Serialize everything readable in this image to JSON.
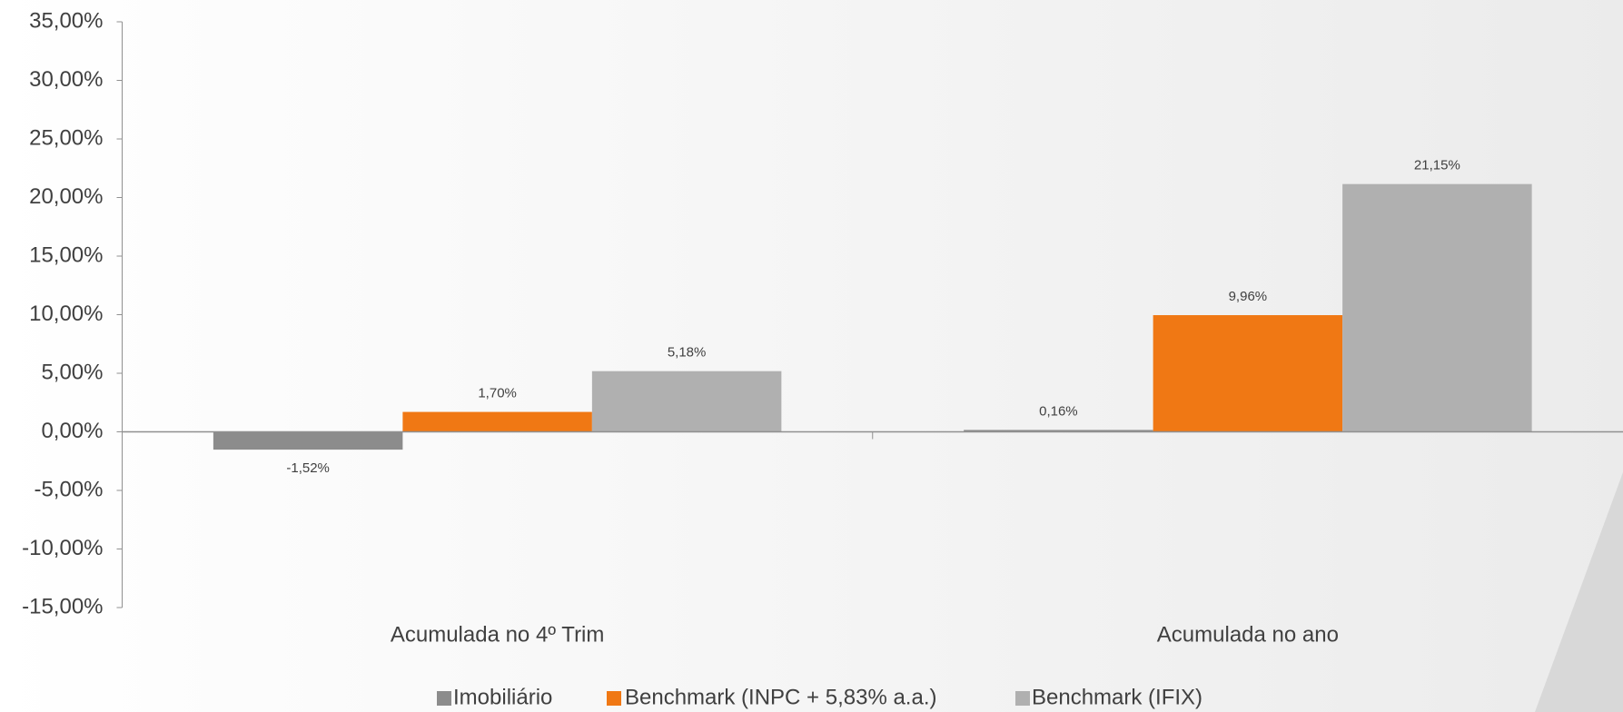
{
  "chart_data": {
    "type": "bar",
    "categories": [
      "Acumulada no 4º Trim",
      "Acumulada no ano"
    ],
    "series": [
      {
        "name": "Imobiliário",
        "color": "#8c8c8c",
        "values": [
          -1.52,
          0.16
        ],
        "value_labels": [
          "-1,52%",
          "0,16%"
        ]
      },
      {
        "name": "Benchmark (INPC + 5,83% a.a.)",
        "color": "#f07814",
        "values": [
          1.7,
          9.96
        ],
        "value_labels": [
          "1,70%",
          "9,96%"
        ]
      },
      {
        "name": "Benchmark (IFIX)",
        "color": "#b0b0b0",
        "values": [
          5.18,
          21.15
        ],
        "value_labels": [
          "5,18%",
          "21,15%"
        ]
      }
    ],
    "ylim": [
      -15,
      35
    ],
    "yticks": [
      {
        "value": -15,
        "label": "-15,00%"
      },
      {
        "value": -10,
        "label": "-10,00%"
      },
      {
        "value": -5,
        "label": "-5,00%"
      },
      {
        "value": 0,
        "label": "0,00%"
      },
      {
        "value": 5,
        "label": "5,00%"
      },
      {
        "value": 10,
        "label": "10,00%"
      },
      {
        "value": 15,
        "label": "15,00%"
      },
      {
        "value": 20,
        "label": "20,00%"
      },
      {
        "value": 25,
        "label": "25,00%"
      },
      {
        "value": 30,
        "label": "30,00%"
      },
      {
        "value": 35,
        "label": "35,00%"
      }
    ],
    "legend": "bottom"
  }
}
